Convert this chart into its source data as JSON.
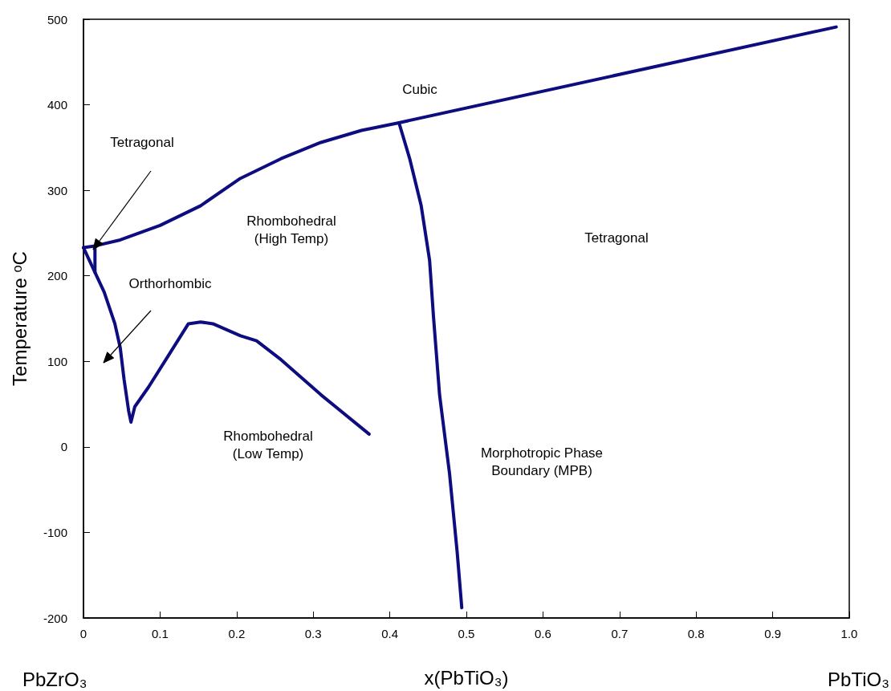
{
  "chart_data": {
    "type": "line",
    "xlabel": "x(PbTiO₃)",
    "ylabel": "Temperature ᵒC",
    "xlim": [
      0,
      1
    ],
    "xticks": [
      0,
      0.1,
      0.2,
      0.3,
      0.4,
      0.5,
      0.6,
      0.7,
      0.8,
      0.9,
      {
        "value": 1,
        "label": "1.0"
      }
    ],
    "ylim": [
      -200,
      500
    ],
    "yticks": [
      -200,
      -100,
      0,
      100,
      200,
      300,
      400,
      500
    ],
    "grid": false,
    "marker": "none",
    "line_style": "solid",
    "series": [
      {
        "color": "#0d0d80",
        "x": [
          0,
          0.015,
          0.048,
          0.1,
          0.153,
          0.205,
          0.258,
          0.31,
          0.363,
          0.412,
          0.983
        ],
        "values": [
          233,
          235,
          242,
          259,
          282,
          314,
          337,
          356,
          370,
          379,
          491
        ]
      },
      {
        "color": "#0d0d80",
        "x": [
          0.412,
          0.426,
          0.441,
          0.452,
          0.457,
          0.465,
          0.478,
          0.488,
          0.494
        ],
        "values": [
          379,
          337,
          282,
          218,
          153,
          61,
          -31,
          -123,
          -188
        ]
      },
      {
        "color": "#0d0d80",
        "x": [
          0,
          0.015,
          0.027,
          0.041,
          0.048,
          0.053,
          0.059,
          0.062,
          0.067,
          0.085,
          0.111,
          0.137,
          0.153,
          0.169,
          0.205,
          0.226,
          0.258,
          0.31,
          0.373
        ],
        "values": [
          233,
          204,
          181,
          144,
          116,
          79,
          42,
          29,
          47,
          70,
          107,
          144,
          146,
          144,
          130,
          124,
          102,
          61,
          15
        ]
      },
      {
        "color": "#0d0d80",
        "x": [
          0.015,
          0.015
        ],
        "values": [
          235,
          204
        ]
      }
    ],
    "annotations": [
      "Tetragonal",
      "Orthorhombic",
      "Cubic",
      "Rhombohedral\n(High Temp)",
      "Tetragonal",
      "Rhombohedral\n(Low Temp)",
      "Morphotropic Phase\nBoundary (MPB)",
      "PbZrO₃",
      "PbTiO₃"
    ]
  }
}
